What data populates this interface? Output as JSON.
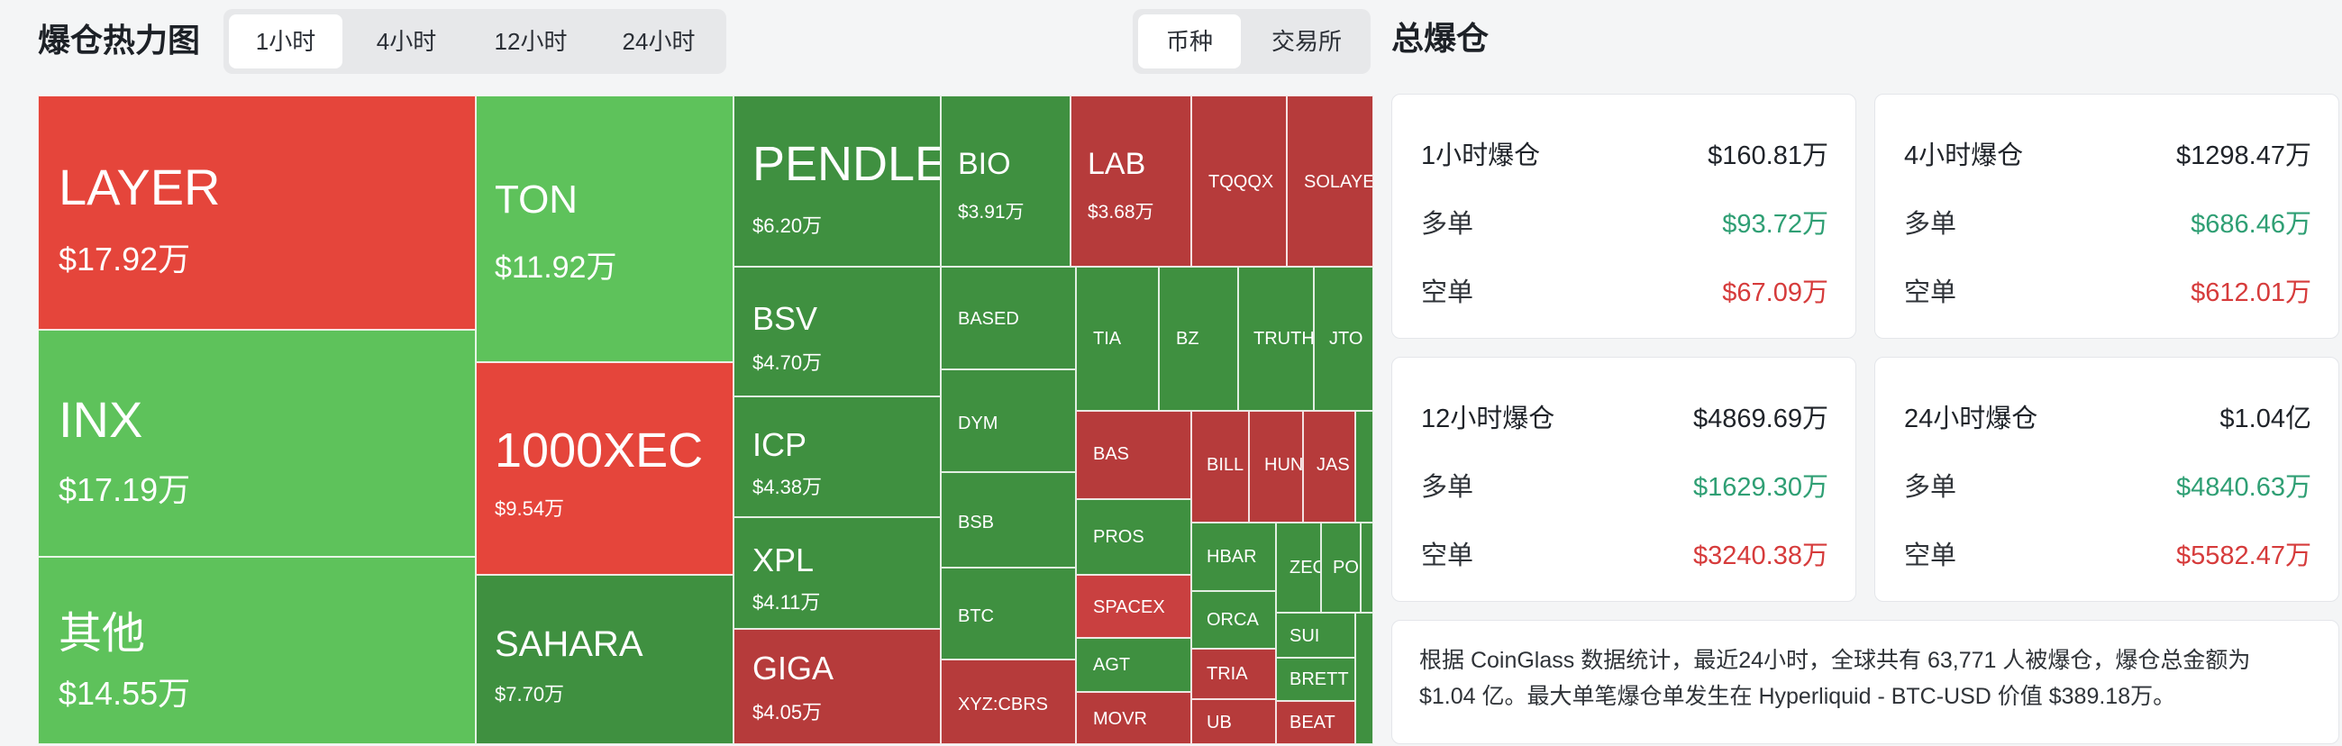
{
  "header": {
    "title": "爆仓热力图",
    "time_tabs": [
      "1小时",
      "4小时",
      "12小时",
      "24小时"
    ],
    "view_tabs": [
      "币种",
      "交易所"
    ],
    "panel_title": "总爆仓"
  },
  "colors": {
    "red": "#e5453b",
    "dark_red": "#b63b3b",
    "green": "#5ec25b",
    "mid_green": "#4aa348",
    "dark_green": "#3f9040",
    "long_text": "#2f9f74",
    "short_text": "#d63b3b"
  },
  "treemap": {
    "big": [
      {
        "symbol": "LAYER",
        "value": "$17.92万"
      },
      {
        "symbol": "INX",
        "value": "$17.19万"
      },
      {
        "symbol": "其他",
        "value": "$14.55万"
      },
      {
        "symbol": "TON",
        "value": "$11.92万"
      },
      {
        "symbol": "1000XEC",
        "value": "$9.54万"
      },
      {
        "symbol": "SAHARA",
        "value": "$7.70万"
      },
      {
        "symbol": "PENDLE",
        "value": "$6.20万"
      },
      {
        "symbol": "BSV",
        "value": "$4.70万"
      },
      {
        "symbol": "ICP",
        "value": "$4.38万"
      },
      {
        "symbol": "XPL",
        "value": "$4.11万"
      },
      {
        "symbol": "GIGA",
        "value": "$4.05万"
      },
      {
        "symbol": "BIO",
        "value": "$3.91万"
      },
      {
        "symbol": "LAB",
        "value": "$3.68万"
      }
    ],
    "small": [
      "TQQQX",
      "SOLAYE",
      "BASED",
      "TIA",
      "BZ",
      "TRUTH",
      "JTO",
      "DYM",
      "BAS",
      "BILL",
      "HUN",
      "JAS",
      "BSB",
      "PROS",
      "HBAR",
      "ZEC",
      "PO",
      "BTC",
      "SPACEX",
      "ORCA",
      "SUI",
      "AGT",
      "TRIA",
      "BRETT",
      "XYZ:CBRS",
      "MOVR",
      "UB",
      "BEAT"
    ]
  },
  "stats": [
    {
      "period": "1小时爆仓",
      "total": "$160.81万",
      "long_label": "多单",
      "long": "$93.72万",
      "short_label": "空单",
      "short": "$67.09万"
    },
    {
      "period": "4小时爆仓",
      "total": "$1298.47万",
      "long_label": "多单",
      "long": "$686.46万",
      "short_label": "空单",
      "short": "$612.01万"
    },
    {
      "period": "12小时爆仓",
      "total": "$4869.69万",
      "long_label": "多单",
      "long": "$1629.30万",
      "short_label": "空单",
      "short": "$3240.38万"
    },
    {
      "period": "24小时爆仓",
      "total": "$1.04亿",
      "long_label": "多单",
      "long": "$4840.63万",
      "short_label": "空单",
      "short": "$5582.47万"
    }
  ],
  "summary": {
    "line1": "根据 CoinGlass 数据统计，最近24小时，全球共有 63,771 人被爆仓，爆仓总金额为",
    "line2": "$1.04 亿。最大单笔爆仓单发生在 Hyperliquid - BTC-USD 价值 $389.18万。"
  }
}
